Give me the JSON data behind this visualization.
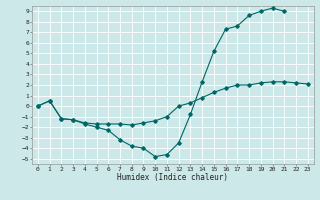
{
  "xlabel": "Humidex (Indice chaleur)",
  "background_color": "#cce8e8",
  "grid_color": "#aacccc",
  "line_color": "#006666",
  "xlim": [
    -0.5,
    23.5
  ],
  "ylim": [
    -5.5,
    9.5
  ],
  "xticks": [
    0,
    1,
    2,
    3,
    4,
    5,
    6,
    7,
    8,
    9,
    10,
    11,
    12,
    13,
    14,
    15,
    16,
    17,
    18,
    19,
    20,
    21,
    22,
    23
  ],
  "yticks": [
    -5,
    -4,
    -3,
    -2,
    -1,
    0,
    1,
    2,
    3,
    4,
    5,
    6,
    7,
    8,
    9
  ],
  "line1_x": [
    0,
    1,
    2,
    3,
    4,
    5,
    6,
    7,
    8,
    9,
    10,
    11,
    12,
    13,
    14,
    15,
    16,
    17,
    18,
    19,
    20,
    21
  ],
  "line1_y": [
    0.0,
    0.5,
    -1.2,
    -1.3,
    -1.7,
    -2.0,
    -2.3,
    -3.2,
    -3.8,
    -4.0,
    -4.8,
    -4.6,
    -3.5,
    -0.8,
    2.3,
    5.2,
    7.3,
    7.6,
    8.6,
    9.0,
    9.3,
    9.0
  ],
  "line2_x": [
    0,
    1,
    2,
    3,
    4,
    5,
    6,
    7,
    8,
    9,
    10,
    11,
    12,
    13,
    14,
    15,
    16,
    17,
    18,
    19,
    20,
    21,
    22,
    23
  ],
  "line2_y": [
    0.0,
    0.5,
    -1.2,
    -1.3,
    -1.6,
    -1.7,
    -1.7,
    -1.7,
    -1.8,
    -1.6,
    -1.4,
    -1.0,
    0.0,
    0.3,
    0.8,
    1.3,
    1.7,
    2.0,
    2.0,
    2.2,
    2.3,
    2.3,
    2.2,
    2.1
  ]
}
